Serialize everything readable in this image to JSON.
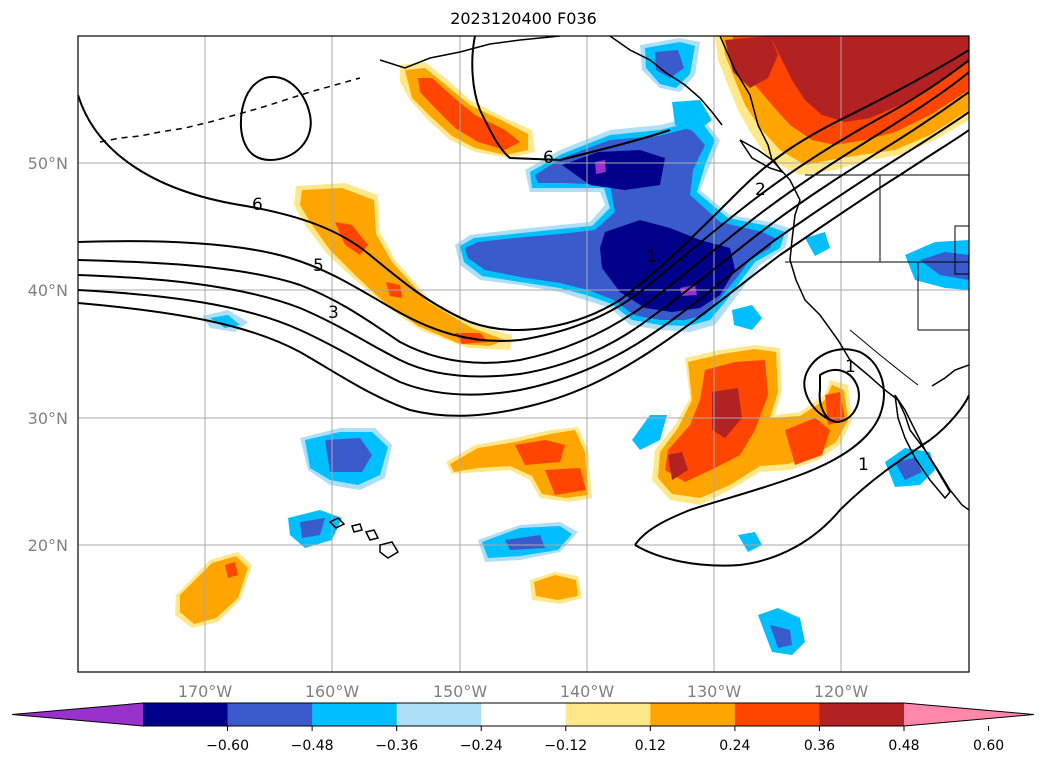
{
  "title": "2023120400 F036",
  "map": {
    "lon_labels": [
      "170°W",
      "160°W",
      "150°W",
      "140°W",
      "130°W",
      "120°W"
    ],
    "lat_labels": [
      "50°N",
      "40°N",
      "30°N",
      "20°N"
    ],
    "contour_labels": [
      "6",
      "5",
      "3",
      "6",
      "1",
      "2",
      "1",
      "1"
    ],
    "grid": true
  },
  "colorbar": {
    "ticks": [
      "−0.60",
      "−0.48",
      "−0.36",
      "−0.24",
      "−0.12",
      "0.12",
      "0.24",
      "0.36",
      "0.48",
      "0.60"
    ],
    "colors": [
      "#9932cc",
      "#00008b",
      "#3a5bcc",
      "#00bfff",
      "#ade0f8",
      "#ffffff",
      "#ffe88a",
      "#ffa500",
      "#ff4500",
      "#b22222",
      "#ff88aa"
    ],
    "extend": "both"
  },
  "fill_colors": {
    "neg_light": "#ade0f8",
    "neg_1": "#00bfff",
    "neg_2": "#3a5bcc",
    "neg_3": "#00008b",
    "neg_4": "#9932cc",
    "pos_light": "#ffe88a",
    "pos_1": "#ffa500",
    "pos_2": "#ff4500",
    "pos_3": "#b22222"
  }
}
